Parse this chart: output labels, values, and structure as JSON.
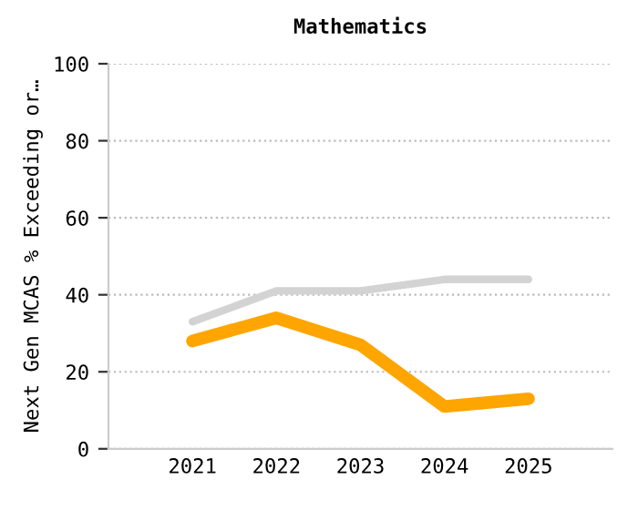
{
  "chart_data": {
    "type": "line",
    "title": "Mathematics",
    "ylabel": "Next Gen MCAS % Exceeding or…",
    "categories": [
      "2021",
      "2022",
      "2023",
      "2024",
      "2025"
    ],
    "series": [
      {
        "color": "#d3d3d3",
        "values": [
          33,
          41,
          41,
          44,
          44
        ]
      },
      {
        "color": "#ffa500",
        "values": [
          28,
          34,
          27,
          11,
          13
        ]
      }
    ],
    "ylim": [
      0,
      100
    ],
    "yticks": [
      0,
      20,
      40,
      60,
      80,
      100
    ],
    "grid": "y",
    "legend": false,
    "marker": "none",
    "line_style": "solid"
  }
}
